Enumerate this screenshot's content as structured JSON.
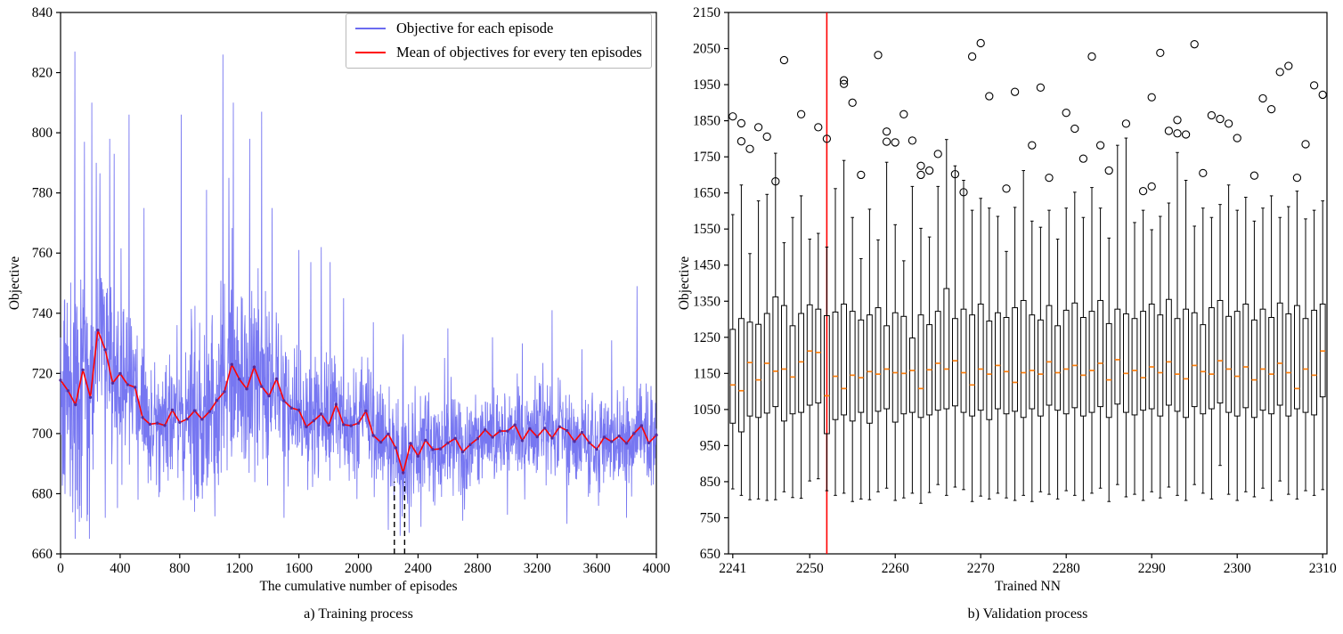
{
  "figure": {
    "background": "#ffffff"
  },
  "chart_data": [
    {
      "type": "line",
      "caption": "a) Training process",
      "xlabel": "The cumulative number of episodes",
      "ylabel": "Objective",
      "xlim": [
        0,
        4000
      ],
      "ylim": [
        660,
        840
      ],
      "xticks": [
        0,
        400,
        800,
        1200,
        1600,
        2000,
        2400,
        2800,
        3200,
        3600,
        4000
      ],
      "yticks": [
        660,
        680,
        700,
        720,
        740,
        760,
        780,
        800,
        820,
        840
      ],
      "grid": false,
      "legend_position": "upper right",
      "legend": [
        {
          "label": "Objective for each episode",
          "color": "#6b6bf0"
        },
        {
          "label": "Mean of objectives for every ten episodes",
          "color": "#ff0000"
        }
      ],
      "colors": {
        "episode_line": "#6b6bf0",
        "mean_line": "#ff0000",
        "mean_marker": "#552b9a",
        "dashed_marker": "#000000"
      },
      "seed": 42,
      "mean_series": {
        "x0": 0,
        "dx": 50,
        "y": [
          718,
          714,
          709,
          722,
          712,
          735,
          728,
          716,
          721,
          717,
          715,
          705,
          703,
          704,
          703,
          707,
          704,
          705,
          708,
          704,
          707,
          710,
          714,
          723,
          718,
          714,
          722,
          716,
          713,
          718,
          711,
          709,
          707,
          703,
          704,
          707,
          703,
          709,
          704,
          702,
          704,
          707,
          700,
          698,
          699,
          695,
          688,
          696,
          692,
          697,
          695,
          694,
          697,
          699,
          693,
          696,
          698,
          702,
          699,
          701,
          700,
          702,
          698,
          701,
          700,
          702,
          699,
          703,
          701,
          698,
          700,
          697,
          694,
          698,
          697,
          699,
          696,
          700,
          703,
          698,
          699
        ]
      },
      "noise_envelope": [
        [
          0,
          52
        ],
        [
          200,
          58
        ],
        [
          400,
          52
        ],
        [
          500,
          30
        ],
        [
          700,
          28
        ],
        [
          900,
          42
        ],
        [
          1100,
          52
        ],
        [
          1300,
          45
        ],
        [
          1500,
          34
        ],
        [
          1700,
          32
        ],
        [
          2000,
          27
        ],
        [
          2400,
          24
        ],
        [
          2800,
          23
        ],
        [
          3200,
          23
        ],
        [
          3600,
          23
        ],
        [
          4000,
          25
        ]
      ],
      "spikes_up": [
        [
          95,
          827
        ],
        [
          160,
          797
        ],
        [
          210,
          810
        ],
        [
          240,
          790
        ],
        [
          330,
          798
        ],
        [
          360,
          793
        ],
        [
          460,
          806
        ],
        [
          560,
          775
        ],
        [
          810,
          806
        ],
        [
          980,
          781
        ],
        [
          1090,
          826
        ],
        [
          1130,
          785
        ],
        [
          1160,
          810
        ],
        [
          1270,
          798
        ],
        [
          1350,
          807
        ],
        [
          1420,
          775
        ],
        [
          1600,
          761
        ],
        [
          1680,
          757
        ],
        [
          1750,
          762
        ],
        [
          1810,
          757
        ],
        [
          1900,
          745
        ],
        [
          2100,
          737
        ],
        [
          2300,
          733
        ],
        [
          2600,
          735
        ],
        [
          2900,
          732
        ],
        [
          3100,
          730
        ],
        [
          3300,
          741
        ],
        [
          3500,
          728
        ],
        [
          3700,
          731
        ],
        [
          3870,
          749
        ]
      ],
      "spikes_down": [
        [
          130,
          676
        ],
        [
          300,
          672
        ],
        [
          520,
          678
        ],
        [
          900,
          674
        ],
        [
          1500,
          672
        ],
        [
          2200,
          668
        ],
        [
          2280,
          666
        ],
        [
          2340,
          667
        ],
        [
          2420,
          669
        ],
        [
          2700,
          671
        ],
        [
          3000,
          673
        ],
        [
          3400,
          670
        ],
        [
          3800,
          672
        ]
      ],
      "dashed_lines": {
        "x": [
          2241,
          2310
        ],
        "y_from": 660,
        "y_to": 684
      }
    },
    {
      "type": "box",
      "caption": "b) Validation process",
      "xlabel": "Trained NN",
      "ylabel": "Objective",
      "xlim": [
        2240.5,
        2310.5
      ],
      "ylim": [
        650,
        2150
      ],
      "xticks": [
        2241,
        2250,
        2260,
        2270,
        2280,
        2290,
        2300,
        2310
      ],
      "yticks": [
        650,
        750,
        850,
        950,
        1050,
        1150,
        1250,
        1350,
        1450,
        1550,
        1650,
        1750,
        1850,
        1950,
        2050,
        2150
      ],
      "grid": false,
      "vline": {
        "x": 2252,
        "color": "#ff0000"
      },
      "colors": {
        "box": "#000000",
        "median": "#ff7f0e",
        "outlier": "#000000"
      },
      "box_x_start": 2241,
      "boxes": [
        [
          830,
          1012,
          1118,
          1272,
          1590,
          [
            1862
          ]
        ],
        [
          812,
          988,
          1102,
          1302,
          1672,
          [
            1843,
            1793
          ]
        ],
        [
          800,
          1032,
          1180,
          1292,
          1482,
          [
            1772
          ]
        ],
        [
          802,
          1028,
          1132,
          1286,
          1628,
          [
            1832
          ]
        ],
        [
          798,
          1040,
          1178,
          1316,
          1646,
          [
            1806
          ]
        ],
        [
          800,
          1058,
          1156,
          1362,
          1760,
          [
            1682
          ]
        ],
        [
          822,
          1018,
          1162,
          1338,
          1512,
          [
            2018
          ]
        ],
        [
          806,
          1038,
          1140,
          1282,
          1582,
          []
        ],
        [
          804,
          1042,
          1182,
          1316,
          1642,
          [
            1868
          ]
        ],
        [
          852,
          1062,
          1212,
          1340,
          1522,
          []
        ],
        [
          858,
          1068,
          1208,
          1328,
          1538,
          [
            1832
          ]
        ],
        [
          825,
          983,
          1088,
          1310,
          1500,
          [
            1800
          ]
        ],
        [
          812,
          1022,
          1142,
          1320,
          1662,
          []
        ],
        [
          818,
          1035,
          1108,
          1342,
          1740,
          [
            1952,
            1962
          ]
        ],
        [
          795,
          1018,
          1145,
          1322,
          1582,
          [
            1900
          ]
        ],
        [
          802,
          1042,
          1138,
          1298,
          1468,
          [
            1700
          ]
        ],
        [
          800,
          1012,
          1155,
          1312,
          1605,
          []
        ],
        [
          822,
          1045,
          1148,
          1332,
          1520,
          [
            2032
          ]
        ],
        [
          832,
          1052,
          1162,
          1282,
          1735,
          [
            1792,
            1820
          ]
        ],
        [
          798,
          1015,
          1152,
          1318,
          1562,
          [
            1790
          ]
        ],
        [
          805,
          1038,
          1150,
          1308,
          1462,
          [
            1868
          ]
        ],
        [
          818,
          1042,
          1158,
          1248,
          1668,
          [
            1795
          ]
        ],
        [
          790,
          1028,
          1108,
          1312,
          1552,
          [
            1725,
            1700
          ]
        ],
        [
          820,
          1035,
          1160,
          1285,
          1528,
          [
            1712
          ]
        ],
        [
          842,
          1048,
          1178,
          1322,
          1668,
          [
            1758
          ]
        ],
        [
          812,
          1052,
          1162,
          1385,
          1798,
          []
        ],
        [
          835,
          1060,
          1185,
          1302,
          1725,
          [
            1702
          ]
        ],
        [
          828,
          1042,
          1152,
          1328,
          1685,
          [
            1652
          ]
        ],
        [
          795,
          1032,
          1118,
          1312,
          1602,
          [
            2028
          ]
        ],
        [
          810,
          1048,
          1162,
          1342,
          1635,
          [
            2065
          ]
        ],
        [
          802,
          1022,
          1148,
          1295,
          1608,
          [
            1918
          ]
        ],
        [
          818,
          1052,
          1172,
          1318,
          1585,
          []
        ],
        [
          805,
          1038,
          1155,
          1305,
          1488,
          [
            1662
          ]
        ],
        [
          798,
          1045,
          1125,
          1332,
          1610,
          [
            1930
          ]
        ],
        [
          812,
          1028,
          1152,
          1352,
          1712,
          []
        ],
        [
          795,
          1052,
          1158,
          1312,
          1572,
          [
            1782
          ]
        ],
        [
          822,
          1032,
          1148,
          1298,
          1555,
          [
            1942
          ]
        ],
        [
          815,
          1062,
          1182,
          1338,
          1602,
          [
            1692
          ]
        ],
        [
          802,
          1048,
          1152,
          1282,
          1522,
          []
        ],
        [
          825,
          1038,
          1162,
          1325,
          1608,
          [
            1872
          ]
        ],
        [
          812,
          1055,
          1172,
          1345,
          1652,
          [
            1828
          ]
        ],
        [
          798,
          1032,
          1145,
          1305,
          1582,
          [
            1745
          ]
        ],
        [
          818,
          1042,
          1158,
          1322,
          1665,
          [
            2028
          ]
        ],
        [
          832,
          1058,
          1178,
          1352,
          1608,
          [
            1782
          ]
        ],
        [
          795,
          1028,
          1132,
          1288,
          1525,
          [
            1712
          ]
        ],
        [
          842,
          1065,
          1188,
          1328,
          1782,
          []
        ],
        [
          808,
          1042,
          1150,
          1315,
          1802,
          [
            1842
          ]
        ],
        [
          815,
          1035,
          1158,
          1302,
          1568,
          []
        ],
        [
          798,
          1048,
          1138,
          1322,
          1602,
          [
            1655
          ]
        ],
        [
          822,
          1052,
          1168,
          1342,
          1548,
          [
            1668,
            1915
          ]
        ],
        [
          805,
          1032,
          1152,
          1312,
          1585,
          [
            2038
          ]
        ],
        [
          835,
          1062,
          1182,
          1355,
          1622,
          [
            1822
          ]
        ],
        [
          812,
          1045,
          1148,
          1302,
          1762,
          [
            1852,
            1815
          ]
        ],
        [
          798,
          1028,
          1135,
          1328,
          1685,
          [
            1812
          ]
        ],
        [
          842,
          1058,
          1172,
          1318,
          1558,
          [
            2062
          ]
        ],
        [
          818,
          1038,
          1155,
          1285,
          1608,
          [
            1705
          ]
        ],
        [
          802,
          1052,
          1148,
          1332,
          1582,
          [
            1865
          ]
        ],
        [
          895,
          1068,
          1185,
          1352,
          1618,
          [
            1855
          ]
        ],
        [
          815,
          1042,
          1162,
          1308,
          1672,
          [
            1842
          ]
        ],
        [
          798,
          1032,
          1142,
          1322,
          1602,
          [
            1802
          ]
        ],
        [
          822,
          1055,
          1168,
          1342,
          1638,
          []
        ],
        [
          808,
          1028,
          1132,
          1298,
          1572,
          [
            1698
          ]
        ],
        [
          832,
          1048,
          1162,
          1328,
          1608,
          [
            1912
          ]
        ],
        [
          798,
          1038,
          1148,
          1305,
          1642,
          [
            1882
          ]
        ],
        [
          852,
          1062,
          1178,
          1345,
          1582,
          [
            1985
          ]
        ],
        [
          815,
          1032,
          1152,
          1315,
          1612,
          [
            2002
          ]
        ],
        [
          802,
          1052,
          1108,
          1338,
          1655,
          [
            1692
          ]
        ],
        [
          825,
          1042,
          1162,
          1302,
          1578,
          [
            1785
          ]
        ],
        [
          812,
          1035,
          1145,
          1325,
          1602,
          [
            1948
          ]
        ],
        [
          828,
          1085,
          1212,
          1342,
          1628,
          [
            1922
          ]
        ]
      ]
    }
  ]
}
